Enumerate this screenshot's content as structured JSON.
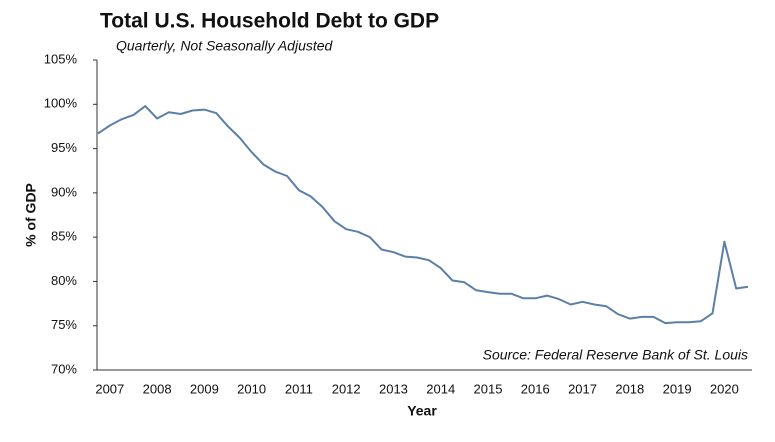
{
  "chart_data": {
    "type": "line",
    "title": "Total U.S. Household Debt to GDP",
    "subtitle": "Quarterly, Not Seasonally Adjusted",
    "x_label": "Year",
    "y_label": "% of GDP",
    "annotation": "Source: Federal Reserve Bank of St. Louis",
    "color": "#5b7fa8",
    "categories": [
      "2007",
      null,
      null,
      null,
      "2008",
      null,
      null,
      null,
      "2009",
      null,
      null,
      null,
      "2010",
      null,
      null,
      null,
      "2011",
      null,
      null,
      null,
      "2012",
      null,
      null,
      null,
      "2013",
      null,
      null,
      null,
      "2014",
      null,
      null,
      null,
      "2015",
      null,
      null,
      null,
      "2016",
      null,
      null,
      null,
      "2017",
      null,
      null,
      null,
      "2018",
      null,
      null,
      null,
      "2019",
      null,
      null,
      null,
      "2020",
      null,
      null,
      null
    ],
    "values": [
      96.7,
      97.6,
      98.3,
      98.8,
      99.8,
      98.4,
      99.1,
      98.9,
      99.3,
      99.4,
      99.0,
      97.5,
      96.2,
      94.6,
      93.2,
      92.4,
      91.9,
      90.3,
      89.6,
      88.4,
      86.8,
      85.9,
      85.6,
      85.0,
      83.6,
      83.3,
      82.8,
      82.7,
      82.4,
      81.5,
      80.1,
      79.9,
      79.0,
      78.8,
      78.6,
      78.6,
      78.1,
      78.1,
      78.4,
      78.0,
      77.4,
      77.7,
      77.4,
      77.2,
      76.3,
      75.8,
      76.0,
      76.0,
      75.3,
      75.4,
      75.4,
      75.5,
      76.4,
      84.5,
      79.2,
      79.4
    ],
    "ylim": [
      70,
      105
    ],
    "yticks": [
      {
        "value": 70,
        "label": "70%"
      },
      {
        "value": 75,
        "label": "75%"
      },
      {
        "value": 80,
        "label": "80%"
      },
      {
        "value": 85,
        "label": "85%"
      },
      {
        "value": 90,
        "label": "90%"
      },
      {
        "value": 95,
        "label": "95%"
      },
      {
        "value": 100,
        "label": "100%"
      },
      {
        "value": 105,
        "label": "105%"
      }
    ],
    "grid": false
  }
}
